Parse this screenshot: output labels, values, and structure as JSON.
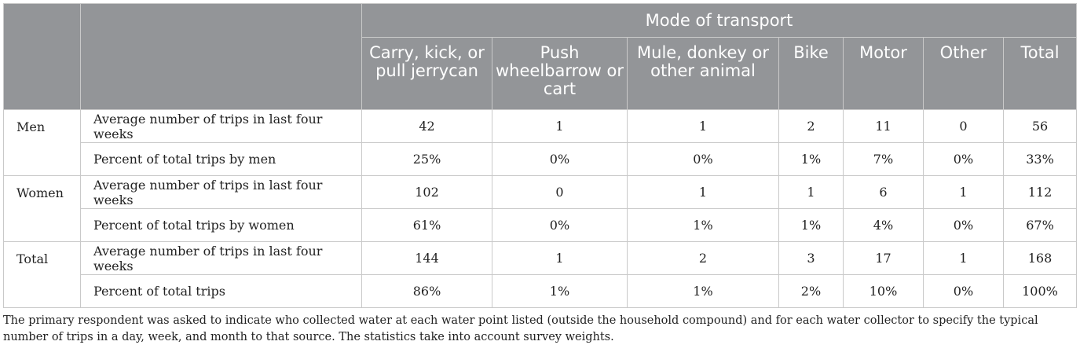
{
  "header": {
    "group_title": "Mode of transport",
    "columns": [
      "Carry, kick, or pull jerrycan",
      "Push wheelbarrow or cart",
      "Mule, donkey or other animal",
      "Bike",
      "Motor",
      "Other",
      "Total"
    ]
  },
  "groups": [
    {
      "name": "Men",
      "rows": [
        {
          "label": "Average number of trips in last four weeks",
          "values": [
            "42",
            "1",
            "1",
            "2",
            "11",
            "0",
            "56"
          ]
        },
        {
          "label": "Percent of total trips by men",
          "values": [
            "25%",
            "0%",
            "0%",
            "1%",
            "7%",
            "0%",
            "33%"
          ]
        }
      ]
    },
    {
      "name": "Women",
      "rows": [
        {
          "label": "Average number of trips in last four weeks",
          "values": [
            "102",
            "0",
            "1",
            "1",
            "6",
            "1",
            "112"
          ]
        },
        {
          "label": "Percent of total trips by women",
          "values": [
            "61%",
            "0%",
            "1%",
            "1%",
            "4%",
            "0%",
            "67%"
          ]
        }
      ]
    },
    {
      "name": "Total",
      "rows": [
        {
          "label": "Average number of trips in last four weeks",
          "values": [
            "144",
            "1",
            "2",
            "3",
            "17",
            "1",
            "168"
          ]
        },
        {
          "label": "Percent of total trips",
          "values": [
            "86%",
            "1%",
            "1%",
            "2%",
            "10%",
            "0%",
            "100%"
          ]
        }
      ]
    }
  ],
  "footnote": "The primary respondent was asked to indicate who collected water at each water point listed (outside the household compound) and for each water collector to specify the typical number of trips in a day, week, and month to that source. The statistics take into account survey weights.",
  "colors": {
    "header_bg": "#939598",
    "header_text": "#ffffff",
    "border": "#c9c9c9"
  }
}
